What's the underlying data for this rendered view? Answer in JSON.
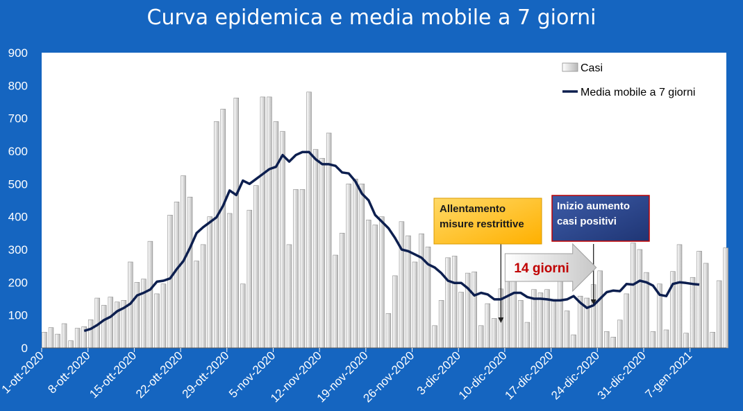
{
  "chart_data": {
    "type": "bar",
    "title": "Curva epidemica e media mobile a 7 giorni",
    "xlabel": "",
    "ylabel": "",
    "ylim": [
      0,
      900
    ],
    "yticks": [
      0,
      100,
      200,
      300,
      400,
      500,
      600,
      700,
      800,
      900
    ],
    "grid": false,
    "legend_position": "top-right",
    "x_start": "1-ott-2020",
    "x_tick_labels": [
      "1-ott-2020",
      "8-ott-2020",
      "15-ott-2020",
      "22-ott-2020",
      "29-ott-2020",
      "5-nov-2020",
      "12-nov-2020",
      "19-nov-2020",
      "26-nov-2020",
      "3-dic-2020",
      "10-dic-2020",
      "17-dic-2020",
      "24-dic-2020",
      "31-dic-2020",
      "7-gen-2021"
    ],
    "series": [
      {
        "name": "Casi",
        "type": "bar",
        "color": "#c8c8c8",
        "values": [
          48,
          62,
          42,
          74,
          22,
          60,
          65,
          86,
          152,
          130,
          155,
          140,
          145,
          262,
          200,
          210,
          325,
          165,
          195,
          405,
          445,
          525,
          460,
          265,
          315,
          400,
          690,
          728,
          410,
          762,
          195,
          420,
          495,
          765,
          765,
          690,
          660,
          315,
          483,
          483,
          780,
          605,
          578,
          655,
          283,
          350,
          500,
          515,
          500,
          390,
          375,
          400,
          105,
          220,
          385,
          342,
          262,
          348,
          308,
          68,
          145,
          275,
          280,
          170,
          228,
          232,
          68,
          135,
          90,
          180,
          210,
          218,
          145,
          78,
          178,
          168,
          178,
          148,
          210,
          113,
          40,
          158,
          152,
          193,
          235,
          50,
          33,
          85,
          165,
          320,
          300,
          230,
          50,
          195,
          55,
          233,
          315,
          45,
          215,
          295,
          258,
          48,
          205,
          305
        ]
      },
      {
        "name": "Media mobile a 7 giorni",
        "type": "line",
        "color": "#0d1f4f",
        "values": [
          null,
          null,
          null,
          null,
          null,
          null,
          52,
          58,
          70,
          85,
          95,
          112,
          122,
          135,
          160,
          168,
          178,
          202,
          205,
          212,
          240,
          265,
          305,
          350,
          368,
          383,
          398,
          433,
          480,
          466,
          510,
          500,
          515,
          530,
          545,
          552,
          588,
          568,
          588,
          597,
          597,
          575,
          560,
          560,
          555,
          535,
          532,
          508,
          470,
          450,
          405,
          385,
          365,
          335,
          300,
          295,
          285,
          275,
          255,
          245,
          228,
          205,
          198,
          198,
          182,
          160,
          168,
          163,
          148,
          148,
          158,
          168,
          168,
          155,
          150,
          150,
          148,
          145,
          145,
          148,
          158,
          138,
          122,
          130,
          150,
          170,
          175,
          173,
          195,
          193,
          205,
          200,
          190,
          162,
          158,
          195,
          200,
          198,
          195,
          193
        ]
      }
    ],
    "annotations": [
      {
        "text": [
          "Allentamento",
          "misure restrittive"
        ],
        "color": "#ffc000",
        "arrow_to_x": "9-dic-2020"
      },
      {
        "text": [
          "Inizio aumento",
          "casi positivi"
        ],
        "color": "#2e4a8f",
        "arrow_to_x": "24-dic-2020"
      },
      {
        "text": "14 giorni",
        "text_color": "#c00000",
        "from_x": "9-dic-2020",
        "to_x": "24-dic-2020"
      }
    ]
  }
}
